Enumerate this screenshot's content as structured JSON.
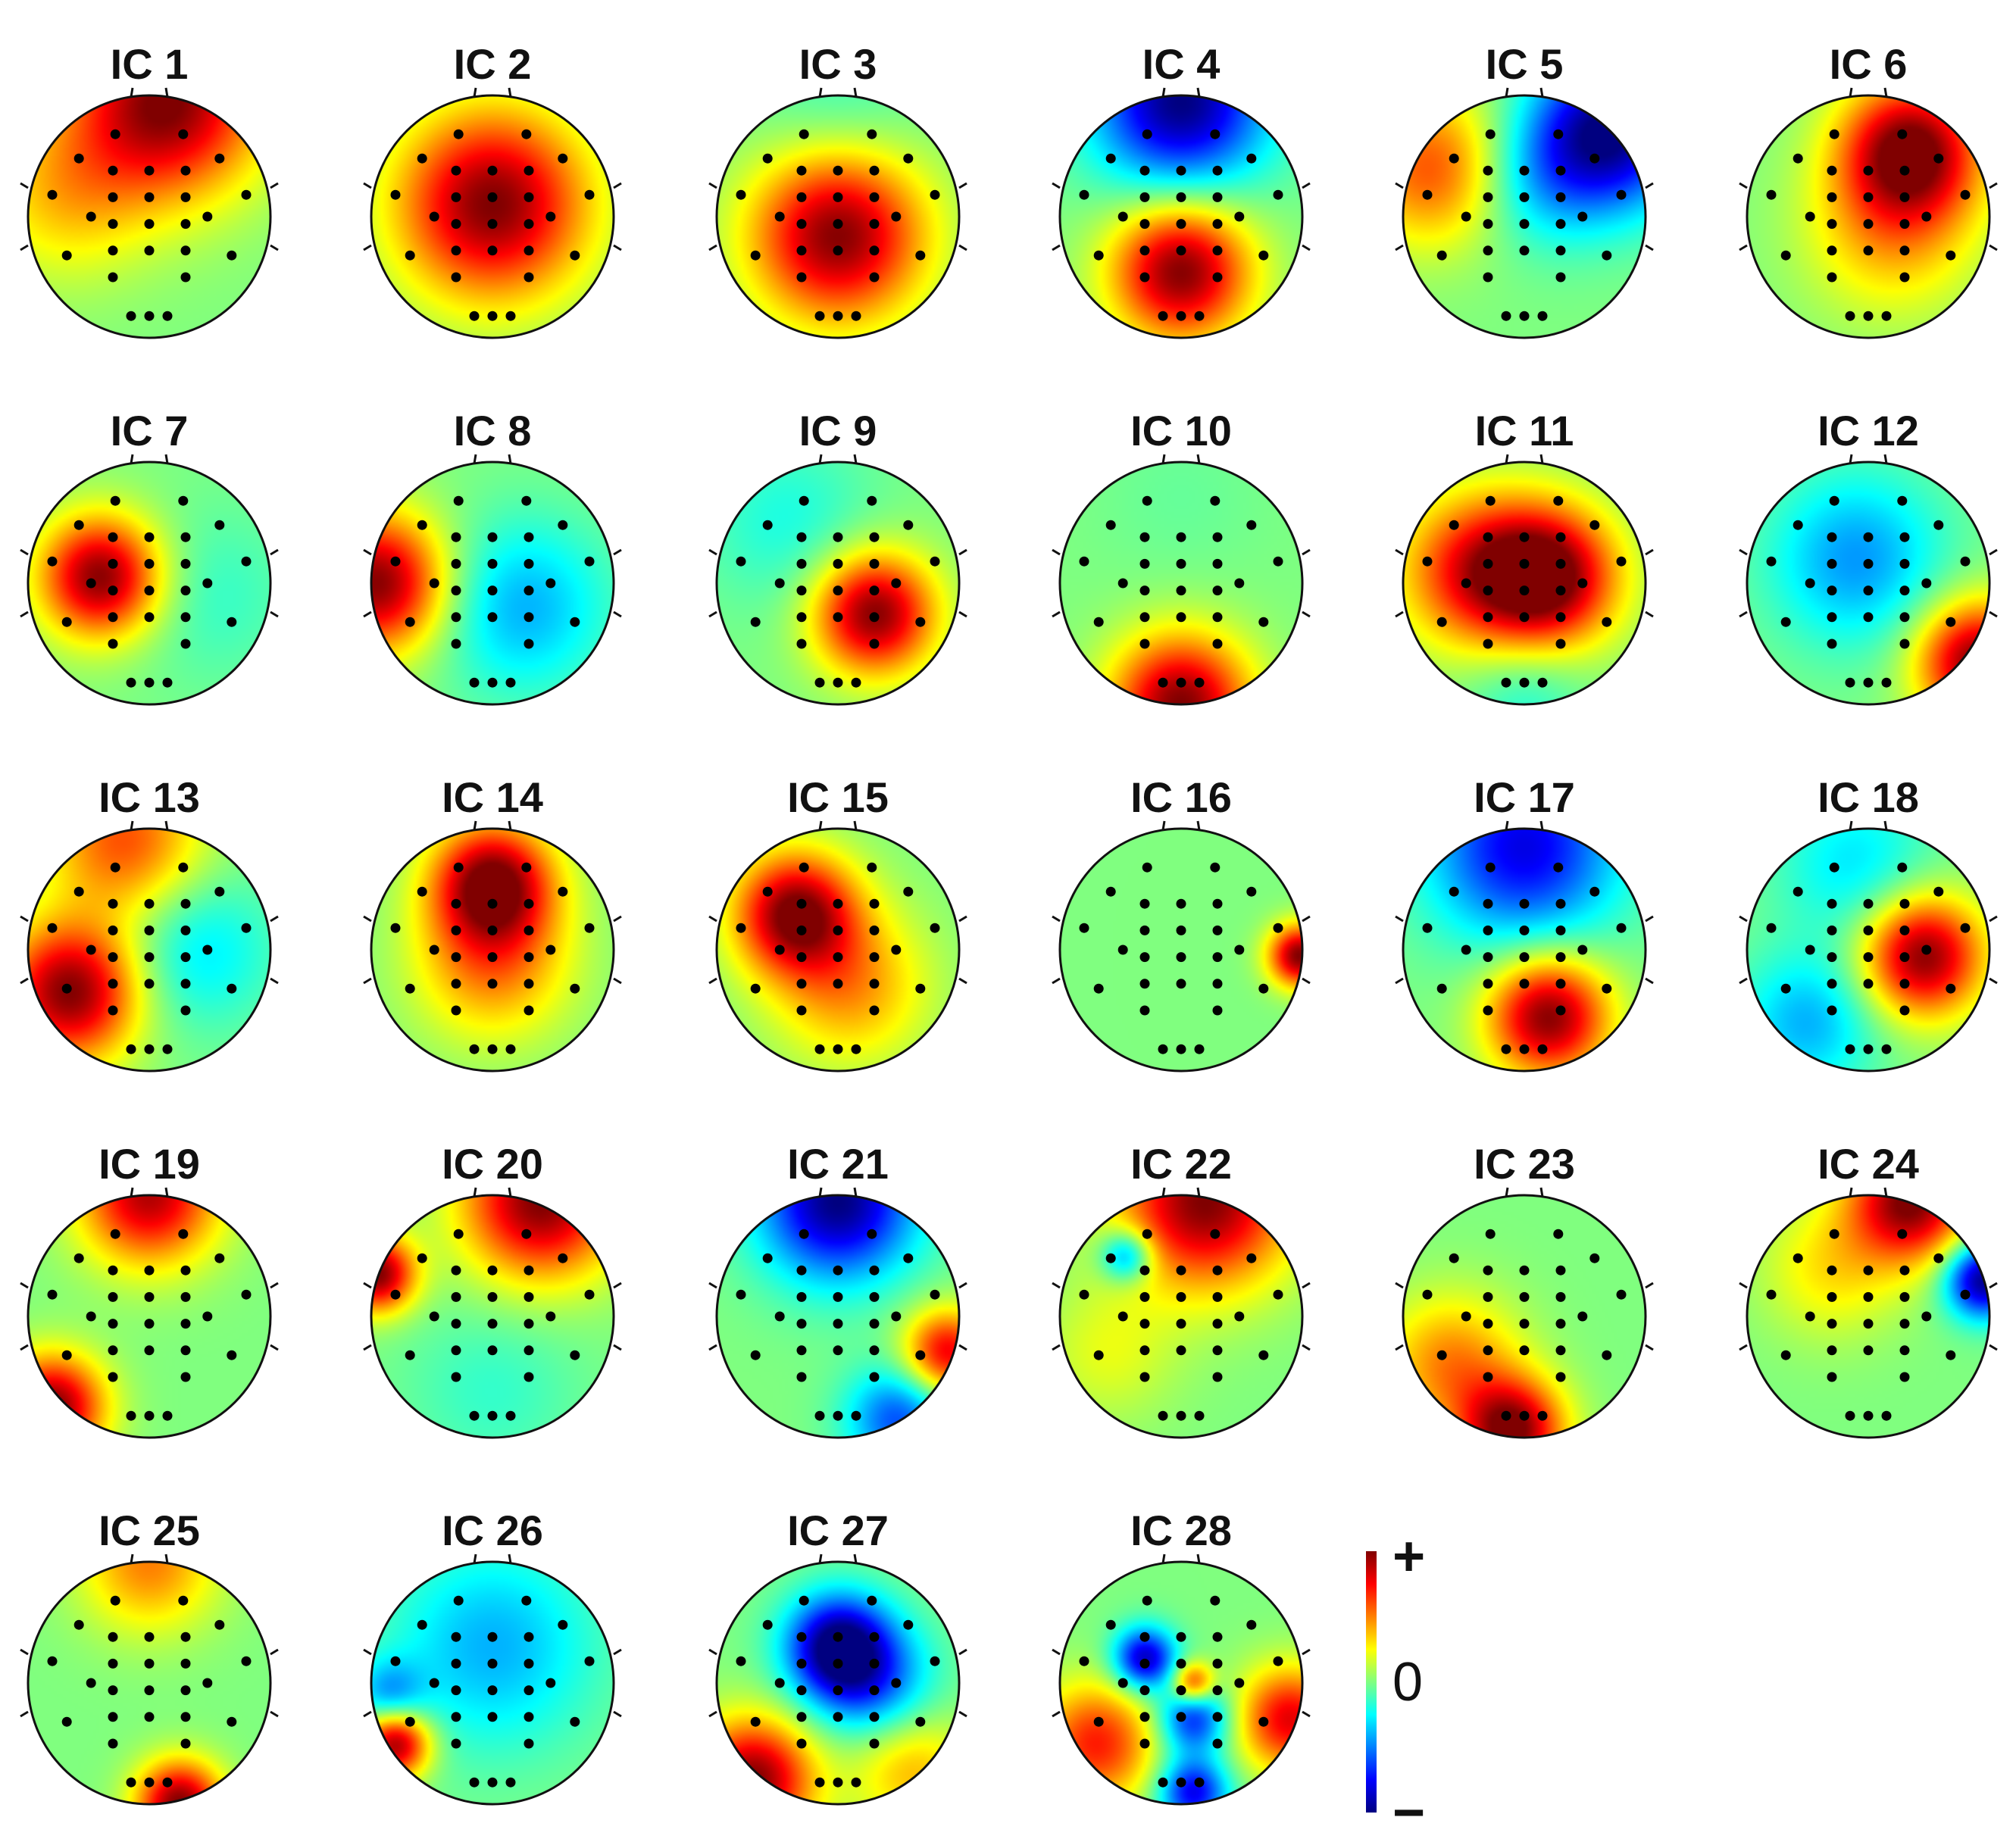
{
  "figure": {
    "components": [
      {
        "label": "IC 1",
        "blobs": [
          [
            0.15,
            -0.95,
            1.0,
            0.55
          ],
          [
            -0.7,
            -0.2,
            0.35,
            0.5
          ]
        ]
      },
      {
        "label": "IC 2",
        "blobs": [
          [
            0,
            -0.1,
            1.0,
            0.55
          ]
        ]
      },
      {
        "label": "IC 3",
        "blobs": [
          [
            0,
            0.15,
            1.0,
            0.5
          ],
          [
            0,
            -0.9,
            -0.15,
            0.5
          ]
        ]
      },
      {
        "label": "IC 4",
        "blobs": [
          [
            0,
            -0.95,
            -1.0,
            0.5
          ],
          [
            0,
            0.45,
            1.0,
            0.4
          ]
        ]
      },
      {
        "label": "IC 5",
        "blobs": [
          [
            0.7,
            -0.7,
            -1.0,
            0.45
          ],
          [
            -0.75,
            -0.4,
            0.6,
            0.45
          ],
          [
            0.1,
            -0.3,
            -0.3,
            0.4
          ]
        ]
      },
      {
        "label": "IC 6",
        "blobs": [
          [
            0.35,
            -0.55,
            1.0,
            0.4
          ],
          [
            0.2,
            0.1,
            0.4,
            0.5
          ]
        ]
      },
      {
        "label": "IC 7",
        "blobs": [
          [
            -0.4,
            -0.05,
            1.0,
            0.35
          ],
          [
            0.5,
            0.1,
            -0.15,
            0.5
          ]
        ]
      },
      {
        "label": "IC 8",
        "blobs": [
          [
            -0.95,
            0,
            1.0,
            0.4
          ],
          [
            0.25,
            0.2,
            -0.4,
            0.5
          ]
        ]
      },
      {
        "label": "IC 9",
        "blobs": [
          [
            0.3,
            0.25,
            1.0,
            0.35
          ],
          [
            -0.4,
            -0.5,
            -0.2,
            0.5
          ]
        ]
      },
      {
        "label": "IC 10",
        "blobs": [
          [
            0,
            1.0,
            1.0,
            0.4
          ],
          [
            0,
            -0.7,
            -0.05,
            0.5
          ]
        ]
      },
      {
        "label": "IC 11",
        "blobs": [
          [
            0.2,
            -0.05,
            1.0,
            0.4
          ],
          [
            -0.4,
            -0.1,
            0.7,
            0.45
          ],
          [
            0,
            0.9,
            -0.2,
            0.35
          ]
        ]
      },
      {
        "label": "IC 12",
        "blobs": [
          [
            0.9,
            0.65,
            1.0,
            0.35
          ],
          [
            -0.1,
            -0.2,
            -0.45,
            0.5
          ]
        ]
      },
      {
        "label": "IC 13",
        "blobs": [
          [
            -0.65,
            0.35,
            1.0,
            0.4
          ],
          [
            -0.2,
            -0.9,
            0.6,
            0.45
          ],
          [
            0.4,
            0.0,
            -0.3,
            0.45
          ]
        ]
      },
      {
        "label": "IC 14",
        "blobs": [
          [
            0,
            -0.55,
            1.0,
            0.35
          ],
          [
            0,
            0.1,
            0.5,
            0.45
          ]
        ]
      },
      {
        "label": "IC 15",
        "blobs": [
          [
            -0.35,
            -0.3,
            1.0,
            0.35
          ],
          [
            0.1,
            0.3,
            0.45,
            0.45
          ]
        ]
      },
      {
        "label": "IC 16",
        "blobs": [
          [
            0.98,
            0.05,
            1.0,
            0.18
          ]
        ]
      },
      {
        "label": "IC 17",
        "blobs": [
          [
            0,
            -0.85,
            -0.8,
            0.55
          ],
          [
            0.2,
            0.55,
            1.0,
            0.35
          ]
        ]
      },
      {
        "label": "IC 18",
        "blobs": [
          [
            0.45,
            0.05,
            1.0,
            0.35
          ],
          [
            -0.5,
            0.6,
            -0.4,
            0.4
          ],
          [
            -0.1,
            -0.7,
            -0.3,
            0.45
          ]
        ]
      },
      {
        "label": "IC 19",
        "blobs": [
          [
            0,
            -1.0,
            0.9,
            0.4
          ],
          [
            -0.8,
            0.75,
            1.0,
            0.3
          ]
        ]
      },
      {
        "label": "IC 20",
        "blobs": [
          [
            0.4,
            -0.95,
            1.0,
            0.45
          ],
          [
            -0.95,
            -0.35,
            1.0,
            0.22
          ],
          [
            0,
            0.6,
            -0.15,
            0.5
          ]
        ]
      },
      {
        "label": "IC 21",
        "blobs": [
          [
            0,
            -0.95,
            -1.0,
            0.45
          ],
          [
            0.9,
            0.3,
            0.8,
            0.25
          ],
          [
            0.5,
            0.85,
            -0.6,
            0.3
          ]
        ]
      },
      {
        "label": "IC 22",
        "blobs": [
          [
            0.2,
            -0.95,
            1.0,
            0.5
          ],
          [
            -0.45,
            -0.5,
            -0.6,
            0.15
          ],
          [
            -0.6,
            0.3,
            0.2,
            0.4
          ]
        ]
      },
      {
        "label": "IC 23",
        "blobs": [
          [
            -0.1,
            0.95,
            1.0,
            0.3
          ],
          [
            -0.6,
            0.4,
            0.5,
            0.4
          ]
        ]
      },
      {
        "label": "IC 24",
        "blobs": [
          [
            0.35,
            -0.95,
            1.0,
            0.35
          ],
          [
            0.95,
            -0.3,
            -1.0,
            0.22
          ],
          [
            -0.3,
            -0.4,
            0.3,
            0.4
          ]
        ]
      },
      {
        "label": "IC 25",
        "blobs": [
          [
            0,
            -1.0,
            0.5,
            0.4
          ],
          [
            0.25,
            1.0,
            1.0,
            0.25
          ]
        ]
      },
      {
        "label": "IC 26",
        "blobs": [
          [
            0,
            -0.3,
            -0.4,
            0.6
          ],
          [
            -0.8,
            0.5,
            1.0,
            0.2
          ],
          [
            -0.85,
            0.1,
            -0.4,
            0.2
          ]
        ]
      },
      {
        "label": "IC 27",
        "blobs": [
          [
            0,
            -0.3,
            -1.0,
            0.3
          ],
          [
            -0.7,
            0.8,
            1.0,
            0.35
          ],
          [
            0.3,
            0.0,
            -0.5,
            0.35
          ],
          [
            0.6,
            0.7,
            0.4,
            0.35
          ]
        ]
      },
      {
        "label": "IC 28",
        "blobs": [
          [
            -0.3,
            -0.2,
            -0.9,
            0.18
          ],
          [
            0.1,
            0.3,
            -0.7,
            0.2
          ],
          [
            0.1,
            0.9,
            -0.8,
            0.2
          ],
          [
            0.9,
            0.3,
            0.8,
            0.3
          ],
          [
            -0.7,
            0.5,
            0.7,
            0.35
          ],
          [
            0.1,
            0.0,
            0.7,
            0.12
          ]
        ]
      }
    ],
    "colorbar": {
      "labels": [
        "+",
        "0",
        "−"
      ],
      "colors": [
        "#800000",
        "#ff0000",
        "#ff8000",
        "#ffff00",
        "#80ff80",
        "#00ffff",
        "#0080ff",
        "#0000ff",
        "#000080"
      ]
    }
  }
}
